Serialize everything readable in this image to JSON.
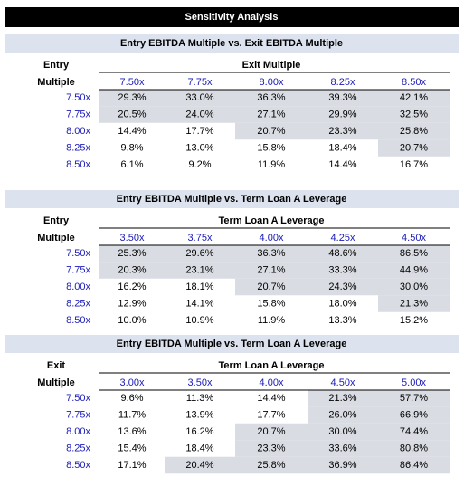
{
  "title": "Sensitivity Analysis",
  "tables": [
    {
      "heading": "Entry EBITDA Multiple vs. Exit EBITDA Multiple",
      "row_axis": [
        "Entry",
        "Multiple"
      ],
      "col_axis": "Exit Multiple",
      "columns": [
        "7.50x",
        "7.75x",
        "8.00x",
        "8.25x",
        "8.50x"
      ],
      "rows": [
        {
          "label": "7.50x",
          "cells": [
            "29.3%",
            "33.0%",
            "36.3%",
            "39.3%",
            "42.1%"
          ]
        },
        {
          "label": "7.75x",
          "cells": [
            "20.5%",
            "24.0%",
            "27.1%",
            "29.9%",
            "32.5%"
          ]
        },
        {
          "label": "8.00x",
          "cells": [
            "14.4%",
            "17.7%",
            "20.7%",
            "23.3%",
            "25.8%"
          ]
        },
        {
          "label": "8.25x",
          "cells": [
            "9.8%",
            "13.0%",
            "15.8%",
            "18.4%",
            "20.7%"
          ]
        },
        {
          "label": "8.50x",
          "cells": [
            "6.1%",
            "9.2%",
            "11.9%",
            "14.4%",
            "16.7%"
          ]
        }
      ]
    },
    {
      "heading": "Entry EBITDA Multiple vs. Term Loan A Leverage",
      "row_axis": [
        "Entry",
        "Multiple"
      ],
      "col_axis": "Term Loan A Leverage",
      "columns": [
        "3.50x",
        "3.75x",
        "4.00x",
        "4.25x",
        "4.50x"
      ],
      "rows": [
        {
          "label": "7.50x",
          "cells": [
            "25.3%",
            "29.6%",
            "36.3%",
            "48.6%",
            "86.5%"
          ]
        },
        {
          "label": "7.75x",
          "cells": [
            "20.3%",
            "23.1%",
            "27.1%",
            "33.3%",
            "44.9%"
          ]
        },
        {
          "label": "8.00x",
          "cells": [
            "16.2%",
            "18.1%",
            "20.7%",
            "24.3%",
            "30.0%"
          ]
        },
        {
          "label": "8.25x",
          "cells": [
            "12.9%",
            "14.1%",
            "15.8%",
            "18.0%",
            "21.3%"
          ]
        },
        {
          "label": "8.50x",
          "cells": [
            "10.0%",
            "10.9%",
            "11.9%",
            "13.3%",
            "15.2%"
          ]
        }
      ]
    },
    {
      "heading": "Entry EBITDA Multiple vs. Term Loan A Leverage",
      "row_axis": [
        "Exit",
        "Multiple"
      ],
      "col_axis": "Term Loan A Leverage",
      "columns": [
        "3.00x",
        "3.50x",
        "4.00x",
        "4.50x",
        "5.00x"
      ],
      "rows": [
        {
          "label": "7.50x",
          "cells": [
            "9.6%",
            "11.3%",
            "14.4%",
            "21.3%",
            "57.7%"
          ]
        },
        {
          "label": "7.75x",
          "cells": [
            "11.7%",
            "13.9%",
            "17.7%",
            "26.0%",
            "66.9%"
          ]
        },
        {
          "label": "8.00x",
          "cells": [
            "13.6%",
            "16.2%",
            "20.7%",
            "30.0%",
            "74.4%"
          ]
        },
        {
          "label": "8.25x",
          "cells": [
            "15.4%",
            "18.4%",
            "23.3%",
            "33.6%",
            "80.8%"
          ]
        },
        {
          "label": "8.50x",
          "cells": [
            "17.1%",
            "20.4%",
            "25.8%",
            "36.9%",
            "86.4%"
          ]
        }
      ]
    }
  ]
}
